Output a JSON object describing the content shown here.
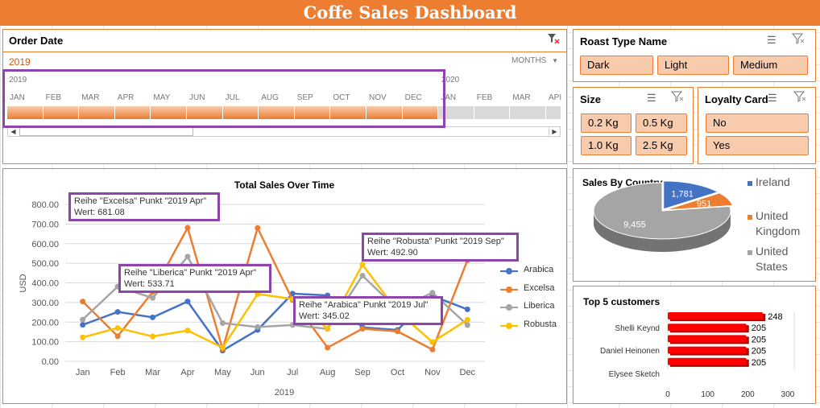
{
  "title": "Coffe Sales Dashboard",
  "order_date": {
    "title": "Order Date",
    "selection": "2019",
    "level": "MONTHS",
    "year_left": "2019",
    "year_right": "2020",
    "months_2019": [
      "JAN",
      "FEB",
      "MAR",
      "APR",
      "MAY",
      "JUN",
      "JUL",
      "AUG",
      "SEP",
      "OCT",
      "NOV",
      "DEC"
    ],
    "months_2020": [
      "JAN",
      "FEB",
      "MAR",
      "API"
    ]
  },
  "roast": {
    "title": "Roast Type Name",
    "options": [
      "Dark",
      "Light",
      "Medium"
    ]
  },
  "size": {
    "title": "Size",
    "options": [
      "0.2 Kg",
      "0.5 Kg",
      "1.0 Kg",
      "2.5 Kg"
    ]
  },
  "loyalty": {
    "title": "Loyalty Card",
    "options": [
      "No",
      "Yes"
    ]
  },
  "chart_data": [
    {
      "type": "line",
      "title": "Total Sales Over Time",
      "xlabel": "2019",
      "ylabel": "USD",
      "ylim": [
        0,
        800
      ],
      "yticks": [
        "0.00",
        "100.00",
        "200.00",
        "300.00",
        "400.00",
        "500.00",
        "600.00",
        "700.00",
        "800.00"
      ],
      "categories": [
        "Jan",
        "Feb",
        "Mar",
        "Apr",
        "May",
        "Jun",
        "Jul",
        "Aug",
        "Sep",
        "Oct",
        "Nov",
        "Dec"
      ],
      "series": [
        {
          "name": "Arabica",
          "color": "#4472C4",
          "values": [
            186,
            252,
            224,
            305,
            55,
            160,
            345.02,
            336,
            173,
            160,
            333,
            265
          ]
        },
        {
          "name": "Excelsa",
          "color": "#ED7D31",
          "values": [
            305,
            128,
            354,
            681.08,
            62,
            680,
            312,
            70,
            166,
            153,
            60,
            515
          ]
        },
        {
          "name": "Liberica",
          "color": "#A5A5A5",
          "values": [
            213,
            381,
            323,
            533.71,
            195,
            175,
            185,
            165,
            437,
            265,
            350,
            185
          ]
        },
        {
          "name": "Robusta",
          "color": "#FFC000",
          "values": [
            122,
            170,
            127,
            157,
            70,
            343,
            318,
            166,
            492.9,
            255,
            98,
            212
          ]
        }
      ],
      "grid": true,
      "legend": "right",
      "tooltips": [
        {
          "line1": "Reihe \"Excelsa\" Punkt \"2019 Apr\"",
          "line2": "Wert: 681.08"
        },
        {
          "line1": "Reihe \"Liberica\" Punkt \"2019 Apr\"",
          "line2": "Wert: 533.71"
        },
        {
          "line1": "Reihe \"Robusta\" Punkt \"2019 Sep\"",
          "line2": "Wert: 492.90"
        },
        {
          "line1": "Reihe \"Arabica\" Punkt \"2019 Jul\"",
          "line2": "Wert: 345.02"
        }
      ]
    },
    {
      "type": "pie",
      "title": "Sales By Country",
      "slices": [
        {
          "name": "Ireland",
          "value": 1781,
          "label": "1,781",
          "color": "#4472C4"
        },
        {
          "name": "United Kingdom",
          "value": 951,
          "label": "951",
          "color": "#ED7D31"
        },
        {
          "name": "United States",
          "value": 9455,
          "label": "9,455",
          "color": "#A5A5A5"
        }
      ],
      "legend_lines": [
        [
          "Ireland"
        ],
        [
          "United",
          "Kingdom"
        ],
        [
          "United",
          "States"
        ]
      ],
      "legend": "right"
    },
    {
      "type": "bar",
      "title": "Top 5 customers",
      "orientation": "horizontal",
      "values": [
        248,
        205,
        205,
        205,
        205
      ],
      "value_labels": [
        "248",
        "205",
        "205",
        "205",
        "205"
      ],
      "category_labels": [
        "Shelli Keynd",
        "Daniel Heinonen",
        "Elysee Sketch"
      ],
      "xlim": [
        0,
        300
      ],
      "xticks": [
        "0",
        "100",
        "200",
        "300"
      ],
      "color": "#FF0000"
    }
  ]
}
